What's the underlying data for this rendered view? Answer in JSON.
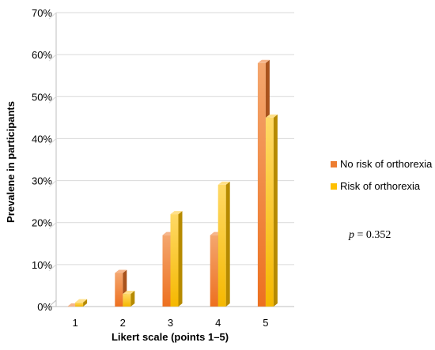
{
  "chart_data": {
    "type": "bar",
    "title": "",
    "xlabel": "Likert scale (points 1–5)",
    "ylabel": "Prevalene in participants",
    "categories": [
      "1",
      "2",
      "3",
      "4",
      "5"
    ],
    "ylim": [
      0,
      70
    ],
    "yticks": [
      0,
      10,
      20,
      30,
      40,
      50,
      60,
      70
    ],
    "ytick_labels": [
      "0%",
      "10%",
      "20%",
      "30%",
      "40%",
      "50%",
      "60%",
      "70%"
    ],
    "grid": true,
    "legend_position": "right",
    "series": [
      {
        "name": "No risk of orthorexia",
        "values": [
          0,
          8,
          17,
          17,
          58
        ],
        "color": "#ED7D31"
      },
      {
        "name": "Risk of orthorexia",
        "values": [
          1,
          3,
          22,
          29,
          45
        ],
        "color": "#FFC000"
      }
    ],
    "annotation": {
      "italic": "p",
      "rest": " = 0.352"
    }
  }
}
